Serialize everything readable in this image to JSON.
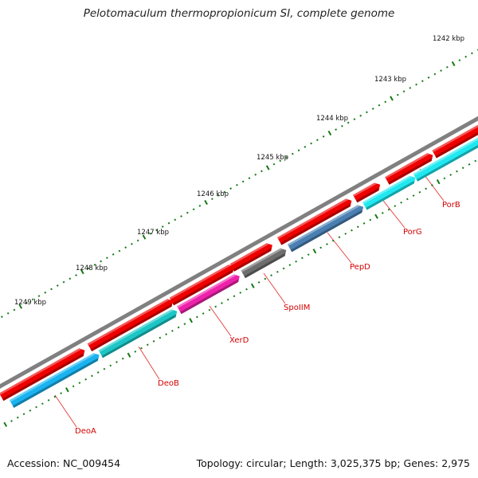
{
  "title": "Pelotomaculum thermopropionicum SI, complete genome",
  "footer": {
    "accession": "Accession: NC_009454",
    "summary": "Topology: circular; Length: 3,025,375 bp; Genes: 2,975"
  },
  "colors": {
    "backbone": "#808080",
    "strand_forward": "#ee0000",
    "tick": "#127a12",
    "label": "#d40000",
    "leader": "#e23a3a"
  },
  "scale": {
    "unit": "kbp",
    "labels": [
      "1242 kbp",
      "1243 kbp",
      "1244 kbp",
      "1245 kbp",
      "1246 kbp",
      "1247 kbp",
      "1248 kbp",
      "1249 kbp"
    ]
  },
  "genes": [
    {
      "name": "DeoA",
      "color": "#19b3f0"
    },
    {
      "name": "DeoB",
      "color": "#1cc6c6"
    },
    {
      "name": "XerD",
      "color": "#ee22aa"
    },
    {
      "name": "SpoIIM",
      "color": "#6e6e6e"
    },
    {
      "name": "PepD",
      "color": "#4a7fb2"
    },
    {
      "name": "PorG",
      "color": "#20e8f0"
    },
    {
      "name": "PorB",
      "color": "#20e8f0"
    }
  ]
}
